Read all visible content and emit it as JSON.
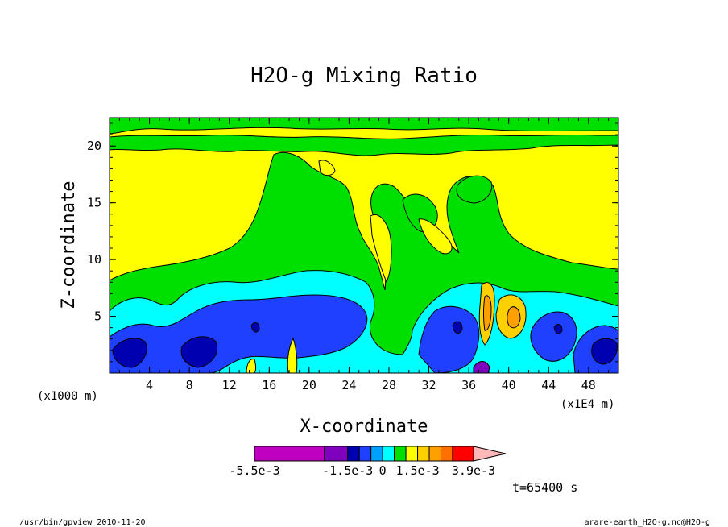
{
  "chart_data": {
    "type": "heatmap",
    "title": "H2O-g Mixing Ratio",
    "xlabel": "X-coordinate",
    "ylabel": "Z-coordinate",
    "x_unit_left": "(x1000 m)",
    "x_unit_right": "(x1E4 m)",
    "x_ticks": [
      "4",
      "8",
      "12",
      "16",
      "20",
      "24",
      "28",
      "32",
      "36",
      "40",
      "44",
      "48"
    ],
    "y_ticks": [
      "5",
      "10",
      "15",
      "20"
    ],
    "xlim": [
      0,
      51
    ],
    "ylim": [
      0,
      22.5
    ],
    "colorbar": {
      "levels": [
        -0.0055,
        -0.0025,
        -0.0015,
        -0.001,
        -0.0005,
        0,
        0.0005,
        0.001,
        0.0015,
        0.002,
        0.0025,
        0.003,
        0.0039,
        0.005
      ],
      "colors": [
        "#c000c0",
        "#8000c0",
        "#0000b0",
        "#2040ff",
        "#00a0ff",
        "#00ffff",
        "#00e000",
        "#ffff00",
        "#ffd000",
        "#ffa000",
        "#ff7000",
        "#ff0000",
        "#ff7070",
        "#ffb8b8"
      ],
      "tick_labels": [
        "-5.5e-3",
        "-1.5e-3",
        "0",
        "1.5e-3",
        "3.9e-3"
      ]
    },
    "time_label": "t=65400 s"
  },
  "footer": {
    "left": "/usr/bin/gpview  2010-11-20",
    "right": "arare-earth_H2O-g.nc@H2O-g"
  }
}
